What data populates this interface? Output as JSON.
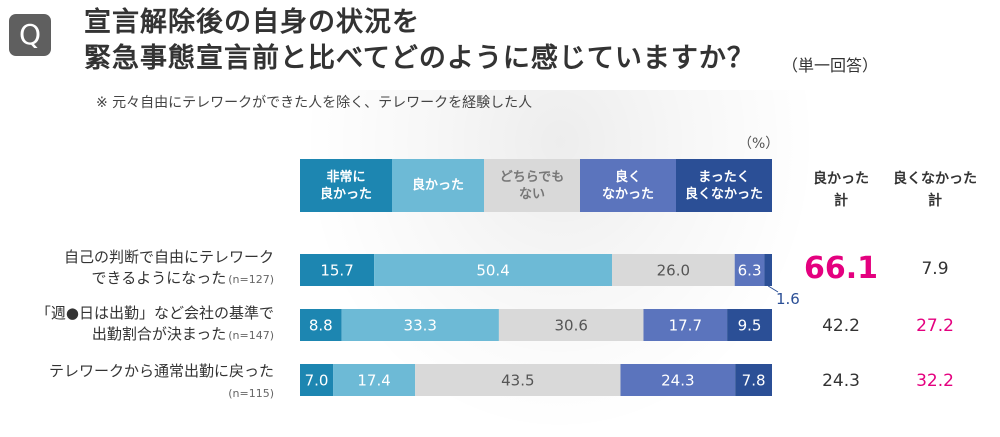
{
  "question": {
    "badge": "Q",
    "title": "宣言解除後の自身の状況を\n緊急事態宣言前と比べてどのように感じていますか？",
    "answer_type": "（単一回答）",
    "note": "※ 元々自由にテレワークができた人を除く、テレワークを経験した人"
  },
  "colors": {
    "very_good": "#1d86b1",
    "good": "#6dbad6",
    "neutral": "#d9d9d9",
    "not_good": "#5b74bd",
    "not_good_at_all": "#2b4f96",
    "highlight": "#e4007f"
  },
  "chart_data": {
    "type": "bar",
    "stacked": true,
    "orientation": "horizontal",
    "unit": "（%）",
    "legend_placement": "top",
    "categories": [
      "自己の判断で自由にテレワークできるようになった",
      "「週●日は出勤」など会社の基準で出勤割合が決まった",
      "テレワークから通常出勤に戻った"
    ],
    "category_lines": [
      [
        "自己の判断で自由にテレワーク",
        "できるようになった"
      ],
      [
        "「週●日は出勤」など会社の基準で",
        "出勤割合が決まった"
      ],
      [
        "テレワークから通常出勤に戻った"
      ]
    ],
    "sample_sizes": [
      "(n=127)",
      "(n=147)",
      "(n=115)"
    ],
    "series": [
      {
        "name": "非常に\n良かった",
        "values": [
          15.7,
          8.8,
          7.0
        ],
        "labels": [
          "15.7",
          "8.8",
          "7.0"
        ]
      },
      {
        "name": "良かった",
        "values": [
          50.4,
          33.3,
          17.4
        ],
        "labels": [
          "50.4",
          "33.3",
          "17.4"
        ]
      },
      {
        "name": "どちらでも\nない",
        "values": [
          26.0,
          30.6,
          43.5
        ],
        "labels": [
          "26.0",
          "30.6",
          "43.5"
        ]
      },
      {
        "name": "良く\nなかった",
        "values": [
          6.3,
          17.7,
          24.3
        ],
        "labels": [
          "6.3",
          "17.7",
          "24.3"
        ]
      },
      {
        "name": "まったく\n良くなかった",
        "values": [
          1.6,
          9.5,
          7.8
        ],
        "labels": [
          "1.6",
          "9.5",
          "7.8"
        ]
      }
    ],
    "totals": {
      "good_header": "良かった\n計",
      "bad_header": "良くなかった\n計",
      "good": [
        "66.1",
        "42.2",
        "24.3"
      ],
      "bad": [
        "7.9",
        "27.2",
        "32.2"
      ]
    }
  }
}
